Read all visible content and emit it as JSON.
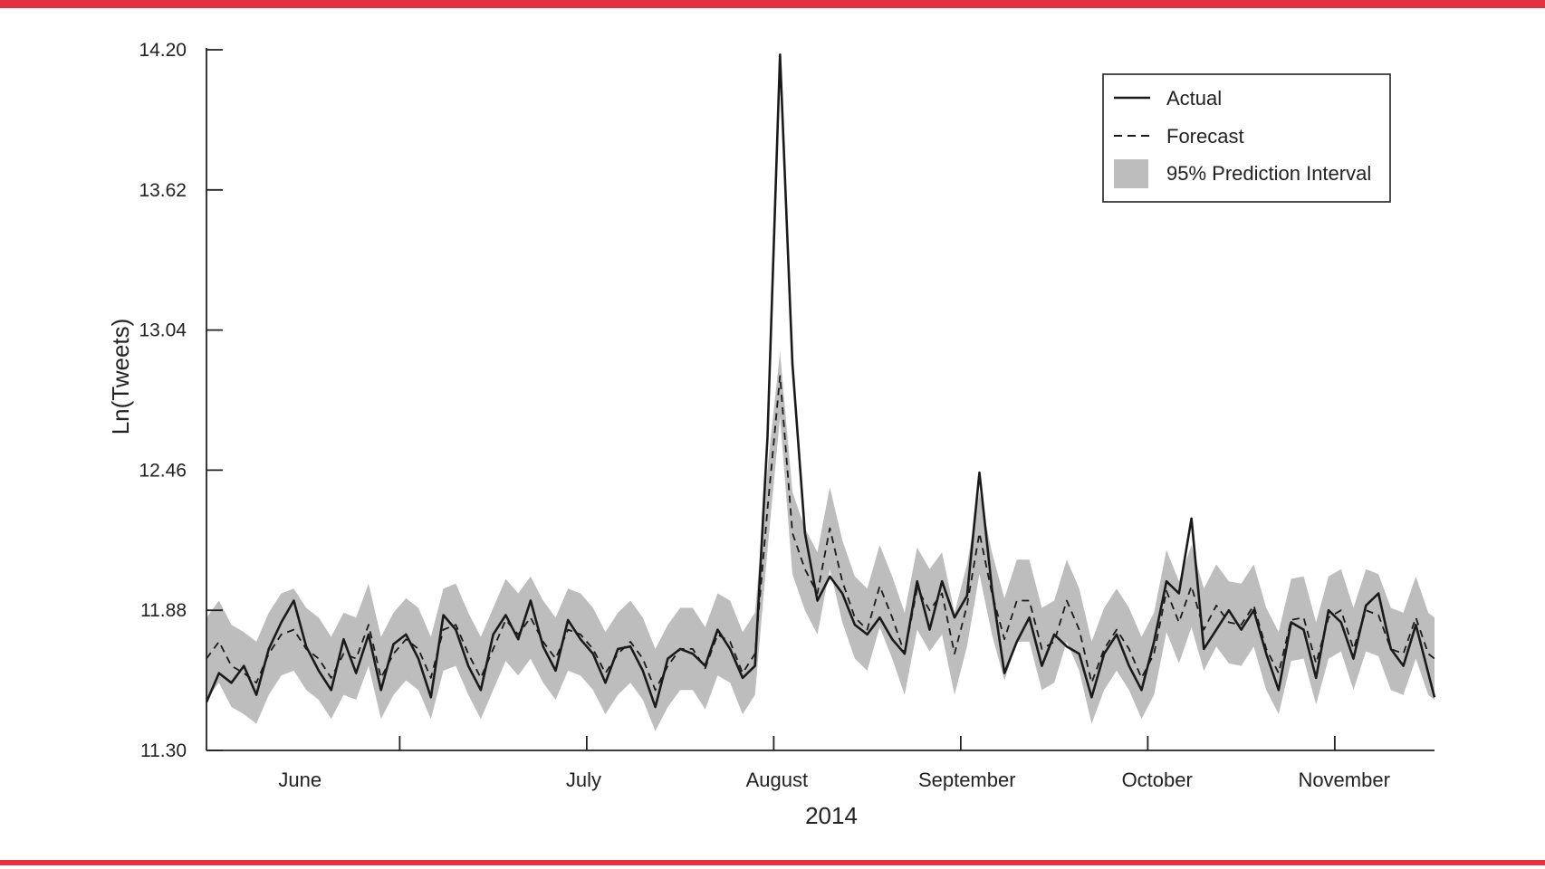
{
  "colors": {
    "accent_bar": "#e4303f",
    "actual_line": "#1a1a1a",
    "forecast_line": "#1a1a1a",
    "interval_fill": "#bdbdbd",
    "axis": "#222222"
  },
  "chart_data": {
    "type": "line",
    "title": "",
    "xlabel": "2014",
    "ylabel": "Ln(Tweets)",
    "ylim": [
      11.3,
      14.2
    ],
    "yticks": [
      "14.20",
      "13.62",
      "13.04",
      "12.46",
      "11.88",
      "11.30"
    ],
    "xlim": [
      "2014-05-17",
      "2014-11-30"
    ],
    "x_tick_dates": [
      "2014-06-17",
      "2014-07-17",
      "2014-08-16",
      "2014-09-15",
      "2014-10-15",
      "2014-11-14"
    ],
    "months": [
      {
        "label": "June",
        "date": "2014-06-01"
      },
      {
        "label": "July",
        "date": "2014-07-01"
      },
      {
        "label": "August",
        "date": "2014-08-01"
      },
      {
        "label": "September",
        "date": "2014-09-01"
      },
      {
        "label": "October",
        "date": "2014-10-01"
      },
      {
        "label": "November",
        "date": "2014-11-01"
      }
    ],
    "legend": {
      "position": "top-right",
      "entries": [
        "Actual",
        "Forecast",
        "95% Prediction Interval"
      ]
    },
    "grid": false,
    "series": [
      {
        "name": "Actual",
        "style": "solid",
        "points": [
          [
            "2014-05-17",
            11.5
          ],
          [
            "2014-05-19",
            11.62
          ],
          [
            "2014-05-21",
            11.58
          ],
          [
            "2014-05-23",
            11.65
          ],
          [
            "2014-05-25",
            11.53
          ],
          [
            "2014-05-27",
            11.72
          ],
          [
            "2014-05-29",
            11.83
          ],
          [
            "2014-05-31",
            11.92
          ],
          [
            "2014-06-02",
            11.73
          ],
          [
            "2014-06-04",
            11.63
          ],
          [
            "2014-06-06",
            11.55
          ],
          [
            "2014-06-08",
            11.76
          ],
          [
            "2014-06-10",
            11.62
          ],
          [
            "2014-06-12",
            11.78
          ],
          [
            "2014-06-14",
            11.55
          ],
          [
            "2014-06-16",
            11.74
          ],
          [
            "2014-06-18",
            11.78
          ],
          [
            "2014-06-20",
            11.68
          ],
          [
            "2014-06-22",
            11.52
          ],
          [
            "2014-06-24",
            11.86
          ],
          [
            "2014-06-26",
            11.8
          ],
          [
            "2014-06-28",
            11.65
          ],
          [
            "2014-06-30",
            11.55
          ],
          [
            "2014-07-02",
            11.78
          ],
          [
            "2014-07-04",
            11.86
          ],
          [
            "2014-07-06",
            11.76
          ],
          [
            "2014-07-08",
            11.92
          ],
          [
            "2014-07-10",
            11.73
          ],
          [
            "2014-07-12",
            11.63
          ],
          [
            "2014-07-14",
            11.84
          ],
          [
            "2014-07-16",
            11.76
          ],
          [
            "2014-07-18",
            11.7
          ],
          [
            "2014-07-20",
            11.58
          ],
          [
            "2014-07-22",
            11.72
          ],
          [
            "2014-07-24",
            11.73
          ],
          [
            "2014-07-26",
            11.63
          ],
          [
            "2014-07-28",
            11.48
          ],
          [
            "2014-07-30",
            11.68
          ],
          [
            "2014-08-01",
            11.72
          ],
          [
            "2014-08-03",
            11.7
          ],
          [
            "2014-08-05",
            11.65
          ],
          [
            "2014-08-07",
            11.8
          ],
          [
            "2014-08-09",
            11.72
          ],
          [
            "2014-08-11",
            11.6
          ],
          [
            "2014-08-13",
            11.65
          ],
          [
            "2014-08-15",
            12.6
          ],
          [
            "2014-08-17",
            14.18
          ],
          [
            "2014-08-19",
            12.9
          ],
          [
            "2014-08-21",
            12.2
          ],
          [
            "2014-08-23",
            11.92
          ],
          [
            "2014-08-25",
            12.02
          ],
          [
            "2014-08-27",
            11.95
          ],
          [
            "2014-08-29",
            11.82
          ],
          [
            "2014-08-31",
            11.78
          ],
          [
            "2014-09-02",
            11.85
          ],
          [
            "2014-09-04",
            11.76
          ],
          [
            "2014-09-06",
            11.7
          ],
          [
            "2014-09-08",
            12.0
          ],
          [
            "2014-09-10",
            11.8
          ],
          [
            "2014-09-12",
            12.0
          ],
          [
            "2014-09-14",
            11.85
          ],
          [
            "2014-09-16",
            11.94
          ],
          [
            "2014-09-18",
            12.45
          ],
          [
            "2014-09-20",
            11.97
          ],
          [
            "2014-09-22",
            11.62
          ],
          [
            "2014-09-24",
            11.75
          ],
          [
            "2014-09-26",
            11.85
          ],
          [
            "2014-09-28",
            11.65
          ],
          [
            "2014-09-30",
            11.78
          ],
          [
            "2014-10-02",
            11.73
          ],
          [
            "2014-10-04",
            11.7
          ],
          [
            "2014-10-06",
            11.52
          ],
          [
            "2014-10-08",
            11.7
          ],
          [
            "2014-10-10",
            11.78
          ],
          [
            "2014-10-12",
            11.65
          ],
          [
            "2014-10-14",
            11.55
          ],
          [
            "2014-10-16",
            11.75
          ],
          [
            "2014-10-18",
            12.0
          ],
          [
            "2014-10-20",
            11.95
          ],
          [
            "2014-10-22",
            12.26
          ],
          [
            "2014-10-24",
            11.72
          ],
          [
            "2014-10-26",
            11.8
          ],
          [
            "2014-10-28",
            11.88
          ],
          [
            "2014-10-30",
            11.8
          ],
          [
            "2014-11-01",
            11.88
          ],
          [
            "2014-11-03",
            11.7
          ],
          [
            "2014-11-05",
            11.55
          ],
          [
            "2014-11-07",
            11.83
          ],
          [
            "2014-11-09",
            11.8
          ],
          [
            "2014-11-11",
            11.6
          ],
          [
            "2014-11-13",
            11.88
          ],
          [
            "2014-11-15",
            11.83
          ],
          [
            "2014-11-17",
            11.68
          ],
          [
            "2014-11-19",
            11.9
          ],
          [
            "2014-11-21",
            11.95
          ],
          [
            "2014-11-23",
            11.72
          ],
          [
            "2014-11-25",
            11.65
          ],
          [
            "2014-11-27",
            11.82
          ],
          [
            "2014-11-29",
            11.62
          ],
          [
            "2014-11-30",
            11.52
          ]
        ]
      },
      {
        "name": "Forecast",
        "style": "dashed",
        "points": [
          [
            "2014-05-17",
            11.68
          ],
          [
            "2014-05-19",
            11.75
          ],
          [
            "2014-05-21",
            11.65
          ],
          [
            "2014-05-23",
            11.62
          ],
          [
            "2014-05-25",
            11.58
          ],
          [
            "2014-05-27",
            11.7
          ],
          [
            "2014-05-29",
            11.78
          ],
          [
            "2014-05-31",
            11.8
          ],
          [
            "2014-06-02",
            11.72
          ],
          [
            "2014-06-04",
            11.68
          ],
          [
            "2014-06-06",
            11.6
          ],
          [
            "2014-06-08",
            11.7
          ],
          [
            "2014-06-10",
            11.68
          ],
          [
            "2014-06-12",
            11.82
          ],
          [
            "2014-06-14",
            11.6
          ],
          [
            "2014-06-16",
            11.7
          ],
          [
            "2014-06-18",
            11.76
          ],
          [
            "2014-06-20",
            11.72
          ],
          [
            "2014-06-22",
            11.6
          ],
          [
            "2014-06-24",
            11.8
          ],
          [
            "2014-06-26",
            11.82
          ],
          [
            "2014-06-28",
            11.7
          ],
          [
            "2014-06-30",
            11.6
          ],
          [
            "2014-07-02",
            11.72
          ],
          [
            "2014-07-04",
            11.84
          ],
          [
            "2014-07-06",
            11.78
          ],
          [
            "2014-07-08",
            11.85
          ],
          [
            "2014-07-10",
            11.75
          ],
          [
            "2014-07-12",
            11.68
          ],
          [
            "2014-07-14",
            11.8
          ],
          [
            "2014-07-16",
            11.78
          ],
          [
            "2014-07-18",
            11.72
          ],
          [
            "2014-07-20",
            11.62
          ],
          [
            "2014-07-22",
            11.7
          ],
          [
            "2014-07-24",
            11.75
          ],
          [
            "2014-07-26",
            11.68
          ],
          [
            "2014-07-28",
            11.55
          ],
          [
            "2014-07-30",
            11.65
          ],
          [
            "2014-08-01",
            11.72
          ],
          [
            "2014-08-03",
            11.72
          ],
          [
            "2014-08-05",
            11.64
          ],
          [
            "2014-08-07",
            11.78
          ],
          [
            "2014-08-09",
            11.75
          ],
          [
            "2014-08-11",
            11.62
          ],
          [
            "2014-08-13",
            11.7
          ],
          [
            "2014-08-15",
            12.3
          ],
          [
            "2014-08-17",
            12.85
          ],
          [
            "2014-08-19",
            12.2
          ],
          [
            "2014-08-21",
            12.05
          ],
          [
            "2014-08-23",
            11.95
          ],
          [
            "2014-08-25",
            12.22
          ],
          [
            "2014-08-27",
            12.0
          ],
          [
            "2014-08-29",
            11.85
          ],
          [
            "2014-08-31",
            11.8
          ],
          [
            "2014-09-02",
            11.98
          ],
          [
            "2014-09-04",
            11.85
          ],
          [
            "2014-09-06",
            11.7
          ],
          [
            "2014-09-08",
            11.97
          ],
          [
            "2014-09-10",
            11.88
          ],
          [
            "2014-09-12",
            11.95
          ],
          [
            "2014-09-14",
            11.7
          ],
          [
            "2014-09-16",
            11.9
          ],
          [
            "2014-09-18",
            12.2
          ],
          [
            "2014-09-20",
            11.95
          ],
          [
            "2014-09-22",
            11.76
          ],
          [
            "2014-09-24",
            11.92
          ],
          [
            "2014-09-26",
            11.92
          ],
          [
            "2014-09-28",
            11.72
          ],
          [
            "2014-09-30",
            11.75
          ],
          [
            "2014-10-02",
            11.92
          ],
          [
            "2014-10-04",
            11.8
          ],
          [
            "2014-10-06",
            11.58
          ],
          [
            "2014-10-08",
            11.72
          ],
          [
            "2014-10-10",
            11.8
          ],
          [
            "2014-10-12",
            11.72
          ],
          [
            "2014-10-14",
            11.6
          ],
          [
            "2014-10-16",
            11.7
          ],
          [
            "2014-10-18",
            11.96
          ],
          [
            "2014-10-20",
            11.83
          ],
          [
            "2014-10-22",
            11.98
          ],
          [
            "2014-10-24",
            11.8
          ],
          [
            "2014-10-26",
            11.9
          ],
          [
            "2014-10-28",
            11.83
          ],
          [
            "2014-10-30",
            11.82
          ],
          [
            "2014-11-01",
            11.9
          ],
          [
            "2014-11-03",
            11.72
          ],
          [
            "2014-11-05",
            11.62
          ],
          [
            "2014-11-07",
            11.84
          ],
          [
            "2014-11-09",
            11.85
          ],
          [
            "2014-11-11",
            11.66
          ],
          [
            "2014-11-13",
            11.85
          ],
          [
            "2014-11-15",
            11.88
          ],
          [
            "2014-11-17",
            11.72
          ],
          [
            "2014-11-19",
            11.88
          ],
          [
            "2014-11-21",
            11.86
          ],
          [
            "2014-11-23",
            11.72
          ],
          [
            "2014-11-25",
            11.7
          ],
          [
            "2014-11-27",
            11.85
          ],
          [
            "2014-11-29",
            11.7
          ],
          [
            "2014-11-30",
            11.68
          ]
        ]
      }
    ],
    "interval": {
      "name": "95% Prediction Interval",
      "half_width": 0.17,
      "peak_upper": [
        [
          "2014-08-17",
          12.95
        ]
      ]
    }
  }
}
